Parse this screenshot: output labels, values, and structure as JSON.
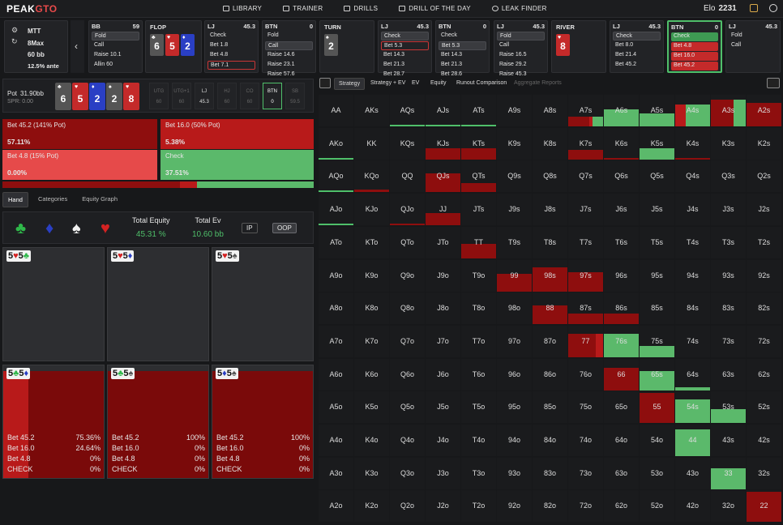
{
  "header": {
    "logo_a": "PEAK",
    "logo_b": "GTO",
    "nav": [
      "LIBRARY",
      "TRAINER",
      "DRILLS",
      "DRILL OF THE DAY",
      "LEAK FINDER"
    ],
    "elo_label": "Elo",
    "elo_value": "2231"
  },
  "game": {
    "format": "MTT",
    "table": "8Max",
    "stack": "60 bb",
    "ante": "12.5% ante"
  },
  "action_boxes": [
    {
      "pos": "BB",
      "stack": "59",
      "options": [
        "Fold",
        "Call",
        "Raise 10.1",
        "Allin 60"
      ]
    },
    {
      "pos": "LJ",
      "stack": "45.3",
      "options": [
        "Check",
        "Bet 1.8",
        "Bet 4.8",
        "Bet 7.1"
      ]
    },
    {
      "pos": "BTN",
      "stack": "0",
      "options": [
        "Fold",
        "Call",
        "Raise 14.6",
        "Raise 23.1",
        "Raise 57.6"
      ]
    },
    {
      "pos": "LJ",
      "stack": "45.3",
      "options": [
        "Check",
        "Bet 5.3",
        "Bet 14.3",
        "Bet 21.3",
        "Bet 28.7"
      ]
    },
    {
      "pos": "BTN",
      "stack": "0",
      "options": [
        "Check",
        "Bet 5.3",
        "Bet 14.3",
        "Bet 21.3",
        "Bet 28.6"
      ]
    },
    {
      "pos": "LJ",
      "stack": "45.3",
      "options": [
        "Fold",
        "Call",
        "Raise 16.5",
        "Raise 29.2",
        "Raise 45.3"
      ]
    },
    {
      "pos": "LJ",
      "stack": "45.3",
      "options": [
        "Check",
        "Bet 8.0",
        "Bet 21.4",
        "Bet 45.2"
      ]
    },
    {
      "pos": "BTN",
      "stack": "0",
      "options": [
        "Check",
        "Bet 4.8",
        "Bet 16.0",
        "Bet 45.2"
      ]
    },
    {
      "pos": "LJ",
      "stack": "45.3",
      "options": [
        "Fold",
        "Call"
      ]
    }
  ],
  "streets": [
    {
      "name": "FLOP",
      "cards": [
        {
          "rank": "6",
          "suit": "♣",
          "color": "#555555"
        },
        {
          "rank": "5",
          "suit": "♥",
          "color": "#c42a2a"
        },
        {
          "rank": "2",
          "suit": "♦",
          "color": "#2a3fc4"
        }
      ]
    },
    {
      "name": "TURN",
      "cards": [
        {
          "rank": "2",
          "suit": "♠",
          "color": "#555555"
        }
      ]
    },
    {
      "name": "RIVER",
      "cards": [
        {
          "rank": "8",
          "suit": "♥",
          "color": "#c42a2a"
        }
      ]
    }
  ],
  "pot": {
    "label": "Pot",
    "value": "31.90bb",
    "spr": "SPR: 0.00"
  },
  "board": [
    {
      "rank": "6",
      "suit": "♣",
      "color": "#555555"
    },
    {
      "rank": "5",
      "suit": "♥",
      "color": "#c42a2a"
    },
    {
      "rank": "2",
      "suit": "♦",
      "color": "#2a3fc4"
    },
    {
      "rank": "2",
      "suit": "♠",
      "color": "#555555"
    },
    {
      "rank": "8",
      "suit": "♥",
      "color": "#c42a2a"
    }
  ],
  "positions": [
    {
      "name": "UTG",
      "stack": "60"
    },
    {
      "name": "UTG+1",
      "stack": "60"
    },
    {
      "name": "LJ",
      "stack": "45.3"
    },
    {
      "name": "HJ",
      "stack": "60"
    },
    {
      "name": "CO",
      "stack": "60"
    },
    {
      "name": "BTN",
      "stack": "0"
    },
    {
      "name": "SB",
      "stack": "59.5"
    }
  ],
  "actions": [
    {
      "label": "Bet 45.2 (141% Pot)",
      "freq": "57.11%",
      "color": "#8e0e0e"
    },
    {
      "label": "Bet 16.0 (50% Pot)",
      "freq": "5.38%",
      "color": "#b81a1a"
    },
    {
      "label": "Bet 4.8 (15% Pot)",
      "freq": "0.00%",
      "color": "#e64a4a"
    },
    {
      "label": "Check",
      "freq": "37.51%",
      "color": "#5bb96b"
    }
  ],
  "freqbar": [
    57.11,
    5.38,
    0,
    37.51
  ],
  "tabs": [
    "Hand",
    "Categories",
    "Equity Graph"
  ],
  "equity": {
    "eq_label": "Total Equity",
    "eq_value": "45.31 %",
    "ev_label": "Total Ev",
    "ev_value": "10.60 bb",
    "ip": "IP",
    "oop": "OOP"
  },
  "suits": [
    {
      "s": "♣",
      "color": "#2fb84a"
    },
    {
      "s": "♦",
      "color": "#2a3fc4"
    },
    {
      "s": "♠",
      "color": "#f0f0f0"
    },
    {
      "s": "♥",
      "color": "#d42222"
    }
  ],
  "combos": [
    {
      "cards": "5♥5♣",
      "fill": 0,
      "rows": []
    },
    {
      "cards": "5♥5♦",
      "fill": 0,
      "rows": []
    },
    {
      "cards": "5♥5♠",
      "fill": 0,
      "rows": []
    },
    {
      "cards": "5♣5♦",
      "fill": 1,
      "split": 0.25,
      "rows": [
        [
          "Bet 45.2",
          "75.36%"
        ],
        [
          "Bet 16.0",
          "24.64%"
        ],
        [
          "Bet 4.8",
          "0%"
        ],
        [
          "CHECK",
          "0%"
        ]
      ]
    },
    {
      "cards": "5♣5♠",
      "fill": 1,
      "split": 0,
      "rows": [
        [
          "Bet 45.2",
          "100%"
        ],
        [
          "Bet 16.0",
          "0%"
        ],
        [
          "Bet 4.8",
          "0%"
        ],
        [
          "CHECK",
          "0%"
        ]
      ]
    },
    {
      "cards": "5♦5♠",
      "fill": 1,
      "split": 0,
      "rows": [
        [
          "Bet 45.2",
          "100%"
        ],
        [
          "Bet 16.0",
          "0%"
        ],
        [
          "Bet 4.8",
          "0%"
        ],
        [
          "CHECK",
          "0%"
        ]
      ]
    }
  ],
  "grid_tabs": [
    "Strategy",
    "Strategy + EV",
    "EV",
    "Equity",
    "Runout Comparison",
    "Aggregate Reports"
  ],
  "grid_ranks": [
    "A",
    "K",
    "Q",
    "J",
    "T",
    "9",
    "8",
    "7",
    "6",
    "5",
    "4",
    "3",
    "2"
  ],
  "hand_fills": {
    "AQs": {
      "h": 0.05,
      "mix": [
        [
          0,
          1,
          "#4fbf6a"
        ]
      ]
    },
    "AJs": {
      "h": 0.05,
      "mix": [
        [
          0,
          1,
          "#4fbf6a"
        ]
      ]
    },
    "ATs": {
      "h": 0.05,
      "mix": [
        [
          0,
          1,
          "#4fbf6a"
        ]
      ]
    },
    "A7s": {
      "h": 0.3,
      "mix": [
        [
          0,
          0.6,
          "#8e0e0e"
        ],
        [
          0.6,
          0.1,
          "#b81a1a"
        ],
        [
          0.7,
          0.3,
          "#5bb96b"
        ]
      ]
    },
    "A6s": {
      "h": 0.55,
      "mix": [
        [
          0,
          1,
          "#5bb96b"
        ]
      ]
    },
    "A5s": {
      "h": 0.4,
      "mix": [
        [
          0,
          1,
          "#5bb96b"
        ]
      ]
    },
    "A4s": {
      "h": 0.7,
      "mix": [
        [
          0,
          0.3,
          "#b81a1a"
        ],
        [
          0.3,
          0.7,
          "#5bb96b"
        ]
      ]
    },
    "A3s": {
      "h": 0.85,
      "mix": [
        [
          0,
          0.65,
          "#8e0e0e"
        ],
        [
          0.65,
          0.35,
          "#5bb96b"
        ]
      ]
    },
    "A2s": {
      "h": 0.75,
      "mix": [
        [
          0,
          1,
          "#8e0e0e"
        ]
      ]
    },
    "AKo": {
      "h": 0.05,
      "mix": [
        [
          0,
          1,
          "#4fbf6a"
        ]
      ]
    },
    "KQo": {
      "h": 0.1,
      "mix": [
        [
          0,
          1,
          "#8e0e0e"
        ]
      ]
    },
    "KJs": {
      "h": 0.35,
      "mix": [
        [
          0,
          1,
          "#8e0e0e"
        ]
      ]
    },
    "KTs": {
      "h": 0.35,
      "mix": [
        [
          0,
          1,
          "#8e0e0e"
        ]
      ]
    },
    "K7s": {
      "h": 0.3,
      "mix": [
        [
          0,
          1,
          "#8e0e0e"
        ]
      ]
    },
    "K6s": {
      "h": 0.05,
      "mix": [
        [
          0,
          1,
          "#8e0e0e"
        ]
      ]
    },
    "K5s": {
      "h": 0.35,
      "mix": [
        [
          0,
          1,
          "#5bb96b"
        ]
      ]
    },
    "K4s": {
      "h": 0.05,
      "mix": [
        [
          0,
          1,
          "#8e0e0e"
        ]
      ]
    },
    "AQo": {
      "h": 0.05,
      "mix": [
        [
          0,
          1,
          "#4fbf6a"
        ]
      ]
    },
    "KQo2": {
      "h": 0.1,
      "mix": [
        [
          0,
          1,
          "#8e0e0e"
        ]
      ]
    },
    "QJs": {
      "h": 0.6,
      "mix": [
        [
          0,
          1,
          "#8e0e0e"
        ]
      ]
    },
    "QTs": {
      "h": 0.3,
      "mix": [
        [
          0,
          1,
          "#8e0e0e"
        ]
      ]
    },
    "AJo": {
      "h": 0.05,
      "mix": [
        [
          0,
          1,
          "#4fbf6a"
        ]
      ]
    },
    "QJo": {
      "h": 0.05,
      "mix": [
        [
          0,
          1,
          "#8e0e0e"
        ]
      ]
    },
    "JJ": {
      "h": 0.4,
      "mix": [
        [
          0,
          1,
          "#8e0e0e"
        ]
      ]
    },
    "TT": {
      "h": 0.45,
      "mix": [
        [
          0,
          1,
          "#8e0e0e"
        ]
      ]
    },
    "99": {
      "h": 0.55,
      "mix": [
        [
          0,
          1,
          "#8e0e0e"
        ]
      ]
    },
    "98s": {
      "h": 0.75,
      "mix": [
        [
          0,
          1,
          "#8e0e0e"
        ]
      ]
    },
    "97s": {
      "h": 0.6,
      "mix": [
        [
          0,
          1,
          "#8e0e0e"
        ]
      ]
    },
    "88": {
      "h": 0.6,
      "mix": [
        [
          0,
          1,
          "#8e0e0e"
        ]
      ]
    },
    "87s": {
      "h": 0.35,
      "mix": [
        [
          0,
          1,
          "#8e0e0e"
        ]
      ]
    },
    "86s": {
      "h": 0.35,
      "mix": [
        [
          0,
          1,
          "#8e0e0e"
        ]
      ]
    },
    "77": {
      "h": 0.75,
      "mix": [
        [
          0,
          0.8,
          "#8e0e0e"
        ],
        [
          0.8,
          0.2,
          "#b81a1a"
        ]
      ]
    },
    "76s": {
      "h": 0.75,
      "mix": [
        [
          0,
          1,
          "#5bb96b"
        ]
      ]
    },
    "75s": {
      "h": 0.35,
      "mix": [
        [
          0,
          1,
          "#5bb96b"
        ]
      ]
    },
    "66": {
      "h": 0.7,
      "mix": [
        [
          0,
          1,
          "#8e0e0e"
        ]
      ]
    },
    "65s": {
      "h": 0.6,
      "mix": [
        [
          0,
          1,
          "#5bb96b"
        ]
      ]
    },
    "64s": {
      "h": 0.1,
      "mix": [
        [
          0,
          1,
          "#5bb96b"
        ]
      ]
    },
    "55": {
      "h": 0.95,
      "mix": [
        [
          0,
          1,
          "#8e0e0e"
        ]
      ]
    },
    "54s": {
      "h": 0.75,
      "mix": [
        [
          0,
          1,
          "#5bb96b"
        ]
      ]
    },
    "53s": {
      "h": 0.45,
      "mix": [
        [
          0,
          1,
          "#5bb96b"
        ]
      ]
    },
    "44": {
      "h": 0.85,
      "mix": [
        [
          0,
          1,
          "#5bb96b"
        ]
      ]
    },
    "33": {
      "h": 0.65,
      "mix": [
        [
          0,
          1,
          "#5bb96b"
        ]
      ]
    },
    "22": {
      "h": 0.95,
      "mix": [
        [
          0,
          1,
          "#8e0e0e"
        ]
      ]
    }
  }
}
